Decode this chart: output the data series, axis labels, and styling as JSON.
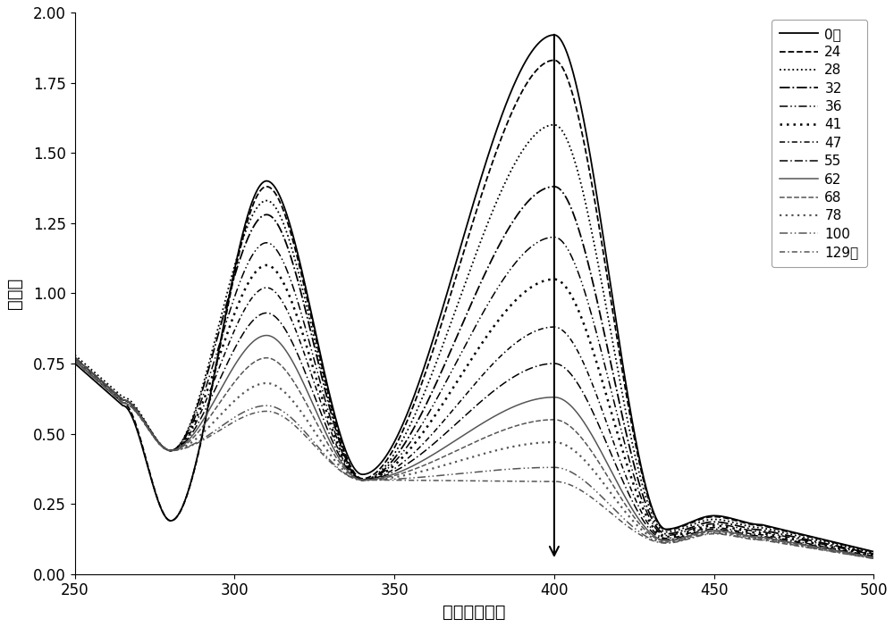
{
  "xlabel": "波长（纳米）",
  "ylabel": "吸光度",
  "xlim": [
    250,
    500
  ],
  "ylim": [
    0.0,
    2.0
  ],
  "xticks": [
    250,
    300,
    350,
    400,
    450,
    500
  ],
  "yticks": [
    0.0,
    0.25,
    0.5,
    0.75,
    1.0,
    1.25,
    1.5,
    1.75,
    2.0
  ],
  "series": [
    {
      "label": "0秒",
      "ls": "solid",
      "lw": 1.3,
      "color": "#000000",
      "p1y": 1.4,
      "p2y": 1.92,
      "sy": 0.62,
      "tr1": 0.19,
      "tr2": 0.355
    },
    {
      "label": "24",
      "ls": "dashed",
      "lw": 1.3,
      "color": "#000000",
      "p1y": 1.38,
      "p2y": 1.83,
      "sy": 0.63,
      "tr1": 0.19,
      "tr2": 0.34
    },
    {
      "label": "28",
      "ls": "dotted",
      "lw": 1.3,
      "color": "#000000",
      "p1y": 1.33,
      "p2y": 1.6,
      "sy": 0.65,
      "tr1": 0.44,
      "tr2": 0.335
    },
    {
      "label": "32",
      "ls": "dashdot",
      "lw": 1.3,
      "color": "#000000",
      "p1y": 1.28,
      "p2y": 1.38,
      "sy": 0.64,
      "tr1": 0.44,
      "tr2": 0.335
    },
    {
      "label": "36",
      "ls": [
        0,
        [
          6,
          2,
          1,
          2,
          1,
          2
        ]
      ],
      "lw": 1.1,
      "color": "#000000",
      "p1y": 1.18,
      "p2y": 1.2,
      "sy": 0.64,
      "tr1": 0.44,
      "tr2": 0.335
    },
    {
      "label": "41",
      "ls": [
        0,
        [
          1,
          2
        ]
      ],
      "lw": 1.8,
      "color": "#000000",
      "p1y": 1.1,
      "p2y": 1.05,
      "sy": 0.64,
      "tr1": 0.44,
      "tr2": 0.335
    },
    {
      "label": "47",
      "ls": [
        0,
        [
          4,
          2,
          1,
          2
        ]
      ],
      "lw": 1.1,
      "color": "#000000",
      "p1y": 1.02,
      "p2y": 0.88,
      "sy": 0.64,
      "tr1": 0.44,
      "tr2": 0.335
    },
    {
      "label": "55",
      "ls": [
        0,
        [
          6,
          2,
          1,
          2
        ]
      ],
      "lw": 1.1,
      "color": "#000000",
      "p1y": 0.93,
      "p2y": 0.75,
      "sy": 0.64,
      "tr1": 0.44,
      "tr2": 0.335
    },
    {
      "label": "62",
      "ls": "solid",
      "lw": 1.1,
      "color": "#555555",
      "p1y": 0.85,
      "p2y": 0.63,
      "sy": 0.64,
      "tr1": 0.44,
      "tr2": 0.335
    },
    {
      "label": "68",
      "ls": "dashed",
      "lw": 1.1,
      "color": "#555555",
      "p1y": 0.77,
      "p2y": 0.55,
      "sy": 0.63,
      "tr1": 0.44,
      "tr2": 0.335
    },
    {
      "label": "78",
      "ls": [
        0,
        [
          1,
          2
        ]
      ],
      "lw": 1.6,
      "color": "#555555",
      "p1y": 0.68,
      "p2y": 0.47,
      "sy": 0.63,
      "tr1": 0.44,
      "tr2": 0.335
    },
    {
      "label": "100",
      "ls": [
        0,
        [
          6,
          2,
          1,
          2,
          1,
          2
        ]
      ],
      "lw": 1.1,
      "color": "#555555",
      "p1y": 0.6,
      "p2y": 0.38,
      "sy": 0.63,
      "tr1": 0.44,
      "tr2": 0.335
    },
    {
      "label": "129秒",
      "ls": [
        0,
        [
          4,
          2,
          1,
          2
        ]
      ],
      "lw": 1.1,
      "color": "#555555",
      "p1y": 0.58,
      "p2y": 0.33,
      "sy": 0.63,
      "tr1": 0.44,
      "tr2": 0.335
    }
  ]
}
